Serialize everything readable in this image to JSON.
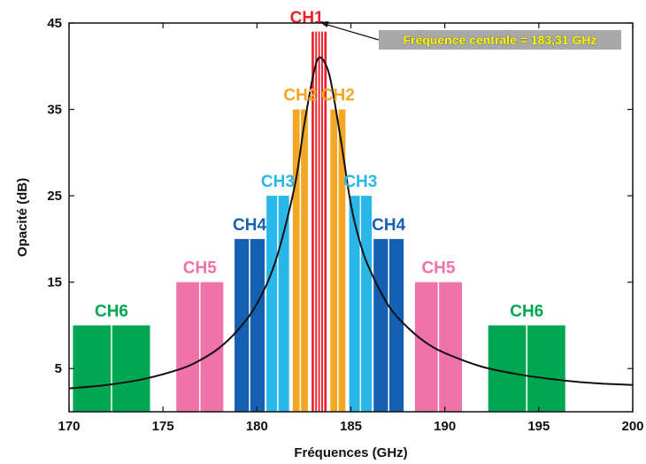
{
  "chart_data": {
    "type": "bar",
    "xlabel": "Fréquences (GHz)",
    "ylabel": "Opacité (dB)",
    "xlim": [
      170,
      200
    ],
    "ylim": [
      0,
      45
    ],
    "x_ticks": [
      "170",
      "175",
      "180",
      "185",
      "190",
      "195",
      "200"
    ],
    "y_ticks": [
      "5",
      "15",
      "25",
      "35",
      "45"
    ],
    "grid": false,
    "channels": [
      {
        "label": "CH1",
        "color": "#e8202a",
        "value": 44,
        "bands": [
          [
            182.91,
            183.71
          ]
        ]
      },
      {
        "label": "CH2",
        "color": "#f5a623",
        "value": 35,
        "bands": [
          [
            181.91,
            182.71
          ],
          [
            183.91,
            184.71
          ]
        ]
      },
      {
        "label": "CH3",
        "color": "#29b6e8",
        "value": 25,
        "bands": [
          [
            180.51,
            181.71
          ],
          [
            184.91,
            186.11
          ]
        ]
      },
      {
        "label": "CH4",
        "color": "#1560b0",
        "value": 20,
        "bands": [
          [
            178.81,
            180.41
          ],
          [
            186.21,
            187.81
          ]
        ]
      },
      {
        "label": "CH5",
        "color": "#ef72a8",
        "value": 15,
        "bands": [
          [
            175.71,
            178.21
          ],
          [
            188.41,
            190.91
          ]
        ]
      },
      {
        "label": "CH6",
        "color": "#00a651",
        "value": 10,
        "bands": [
          [
            170.21,
            174.31
          ],
          [
            192.31,
            196.41
          ]
        ]
      }
    ],
    "curve": {
      "type": "line",
      "color": "#111111",
      "peak_x": 183.31,
      "peak_y": 41,
      "points": [
        [
          170,
          2.7
        ],
        [
          172,
          3.1
        ],
        [
          174,
          3.8
        ],
        [
          176,
          5.0
        ],
        [
          177,
          6.0
        ],
        [
          178,
          7.4
        ],
        [
          179,
          9.5
        ],
        [
          180,
          12.5
        ],
        [
          181,
          17.5
        ],
        [
          182,
          26.0
        ],
        [
          182.5,
          33.0
        ],
        [
          183,
          39.0
        ],
        [
          183.31,
          41.0
        ],
        [
          183.7,
          40.0
        ],
        [
          184,
          37.5
        ],
        [
          184.5,
          31.0
        ],
        [
          185,
          24.0
        ],
        [
          185.5,
          19.5
        ],
        [
          186,
          16.5
        ],
        [
          187,
          12.3
        ],
        [
          188,
          9.8
        ],
        [
          189,
          8.0
        ],
        [
          190,
          6.8
        ],
        [
          192,
          5.2
        ],
        [
          194,
          4.3
        ],
        [
          196,
          3.7
        ],
        [
          198,
          3.3
        ],
        [
          200,
          3.1
        ]
      ]
    },
    "annotation": {
      "text": "Fréquence centrale = 183,31 GHz",
      "x": 183.31,
      "y": 45,
      "box_color": "#a8a8a8",
      "text_color": "#ffff00"
    }
  }
}
